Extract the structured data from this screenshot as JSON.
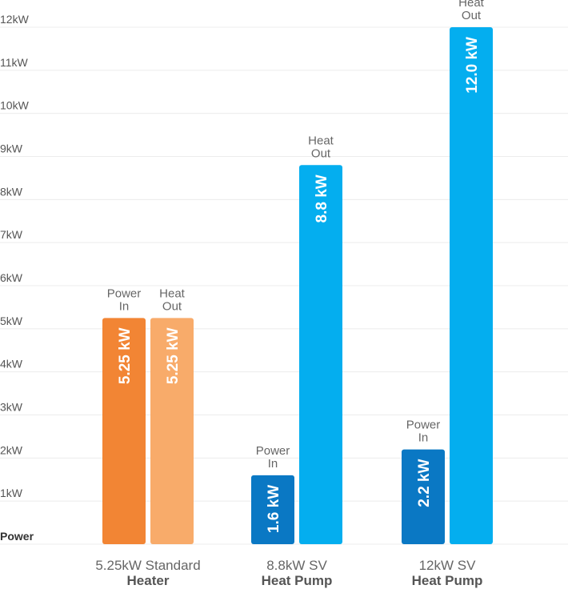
{
  "chart_data": {
    "type": "bar",
    "ylim": [
      0,
      12
    ],
    "grid": true,
    "y_ticks": [
      {
        "value": 0,
        "label": "Power"
      },
      {
        "value": 1,
        "label": "1kW"
      },
      {
        "value": 2,
        "label": "2kW"
      },
      {
        "value": 3,
        "label": "3kW"
      },
      {
        "value": 4,
        "label": "4kW"
      },
      {
        "value": 5,
        "label": "5kW"
      },
      {
        "value": 6,
        "label": "6kW"
      },
      {
        "value": 7,
        "label": "7kW"
      },
      {
        "value": 8,
        "label": "8kW"
      },
      {
        "value": 9,
        "label": "9kW"
      },
      {
        "value": 10,
        "label": "10kW"
      },
      {
        "value": 11,
        "label": "11kW"
      },
      {
        "value": 12,
        "label": "12kW"
      }
    ],
    "groups": [
      {
        "label_line1": "5.25kW Standard",
        "label_line2": "Heater",
        "bars": [
          {
            "top_label": [
              "Power",
              "In"
            ],
            "value": 5.25,
            "value_label": "5.25 kW",
            "color": "#f28534"
          },
          {
            "top_label": [
              "Heat",
              "Out"
            ],
            "value": 5.25,
            "value_label": "5.25 kW",
            "color": "#f8ab6a"
          }
        ]
      },
      {
        "label_line1": "8.8kW SV",
        "label_line2": "Heat Pump",
        "bars": [
          {
            "top_label": [
              "Power",
              "In"
            ],
            "value": 1.6,
            "value_label": "1.6 kW",
            "color": "#0a78c4"
          },
          {
            "top_label": [
              "Heat",
              "Out"
            ],
            "value": 8.8,
            "value_label": "8.8 kW",
            "color": "#04aeef"
          }
        ]
      },
      {
        "label_line1": "12kW SV",
        "label_line2": "Heat Pump",
        "bars": [
          {
            "top_label": [
              "Power",
              "In"
            ],
            "value": 2.2,
            "value_label": "2.2 kW",
            "color": "#0a78c4"
          },
          {
            "top_label": [
              "Heat",
              "Out"
            ],
            "value": 12.0,
            "value_label": "12.0 kW",
            "color": "#04aeef"
          }
        ]
      }
    ]
  }
}
